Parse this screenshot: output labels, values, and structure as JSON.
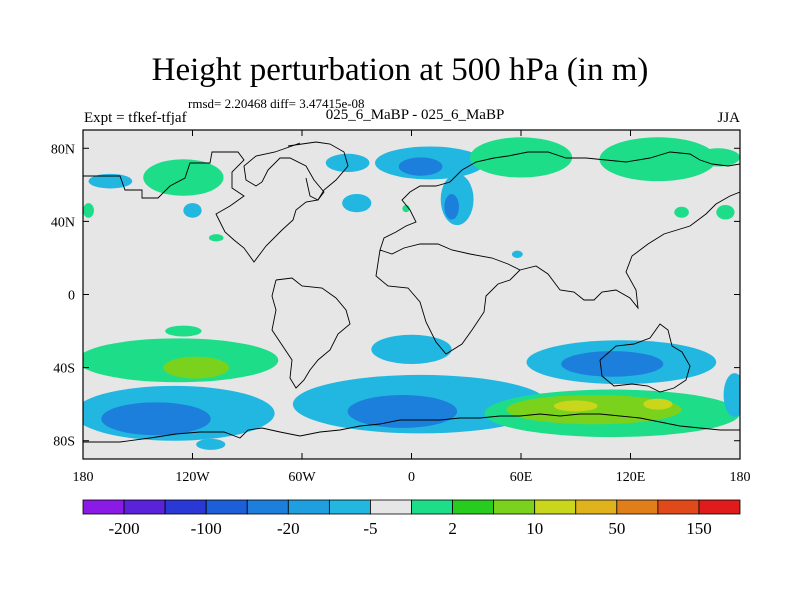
{
  "header": {
    "title": "Height perturbation at 500 hPa (in m)",
    "rmsd_line": "rmsd= 2.20468 diff= 3.47415e-08",
    "left_label": "Expt = tfkef-tfjaf",
    "center_label": "025_6_MaBP - 025_6_MaBP",
    "right_label": "JJA"
  },
  "map": {
    "projection": "cylindrical equidistant",
    "lon_range": [
      -180,
      180
    ],
    "lat_range": [
      -90,
      90
    ],
    "background_color": "#e6e6e6",
    "coastline_color": "#000000",
    "x_ticks": [
      {
        "lon": -180,
        "label": "180"
      },
      {
        "lon": -120,
        "label": "120W"
      },
      {
        "lon": -60,
        "label": "60W"
      },
      {
        "lon": 0,
        "label": "0"
      },
      {
        "lon": 60,
        "label": "60E"
      },
      {
        "lon": 120,
        "label": "120E"
      },
      {
        "lon": 180,
        "label": "180"
      }
    ],
    "y_ticks": [
      {
        "lat": 80,
        "label": "80N"
      },
      {
        "lat": 40,
        "label": "40N"
      },
      {
        "lat": 0,
        "label": "0"
      },
      {
        "lat": -40,
        "label": "40S"
      },
      {
        "lat": -80,
        "label": "80S"
      }
    ],
    "anomalies": [
      {
        "lon": 10,
        "lat": 72,
        "rx": 30,
        "ry": 9,
        "level": -5
      },
      {
        "lon": 5,
        "lat": 70,
        "rx": 12,
        "ry": 5,
        "level": -20
      },
      {
        "lon": 25,
        "lat": 52,
        "rx": 9,
        "ry": 14,
        "level": -5
      },
      {
        "lon": 22,
        "lat": 48,
        "rx": 4,
        "ry": 7,
        "level": -20
      },
      {
        "lon": -35,
        "lat": 72,
        "rx": 12,
        "ry": 5,
        "level": -5
      },
      {
        "lon": -30,
        "lat": 50,
        "rx": 8,
        "ry": 5,
        "level": -5
      },
      {
        "lon": -165,
        "lat": 62,
        "rx": 12,
        "ry": 4,
        "level": -5
      },
      {
        "lon": -120,
        "lat": 46,
        "rx": 5,
        "ry": 4,
        "level": -5
      },
      {
        "lon": 58,
        "lat": 22,
        "rx": 3,
        "ry": 2,
        "level": -5
      },
      {
        "lon": -125,
        "lat": 64,
        "rx": 22,
        "ry": 10,
        "level": 2
      },
      {
        "lon": 60,
        "lat": 75,
        "rx": 28,
        "ry": 11,
        "level": 2
      },
      {
        "lon": 135,
        "lat": 74,
        "rx": 32,
        "ry": 12,
        "level": 2
      },
      {
        "lon": 168,
        "lat": 75,
        "rx": 12,
        "ry": 5,
        "level": 2
      },
      {
        "lon": 172,
        "lat": 45,
        "rx": 5,
        "ry": 4,
        "level": 2
      },
      {
        "lon": 148,
        "lat": 45,
        "rx": 4,
        "ry": 3,
        "level": 2
      },
      {
        "lon": -177,
        "lat": 46,
        "rx": 3,
        "ry": 4,
        "level": 2
      },
      {
        "lon": -107,
        "lat": 31,
        "rx": 4,
        "ry": 2,
        "level": 2
      },
      {
        "lon": -3,
        "lat": 47,
        "rx": 2,
        "ry": 2,
        "level": 2
      },
      {
        "lon": -128,
        "lat": -36,
        "rx": 55,
        "ry": 12,
        "level": 2
      },
      {
        "lon": -118,
        "lat": -40,
        "rx": 18,
        "ry": 6,
        "level": 10
      },
      {
        "lon": -125,
        "lat": -20,
        "rx": 10,
        "ry": 3,
        "level": 2
      },
      {
        "lon": -130,
        "lat": -65,
        "rx": 55,
        "ry": 15,
        "level": -5
      },
      {
        "lon": -140,
        "lat": -68,
        "rx": 30,
        "ry": 9,
        "level": -20
      },
      {
        "lon": 5,
        "lat": -60,
        "rx": 70,
        "ry": 16,
        "level": -5
      },
      {
        "lon": -5,
        "lat": -64,
        "rx": 30,
        "ry": 9,
        "level": -20
      },
      {
        "lon": 0,
        "lat": -30,
        "rx": 22,
        "ry": 8,
        "level": -5
      },
      {
        "lon": 115,
        "lat": -37,
        "rx": 52,
        "ry": 12,
        "level": -5
      },
      {
        "lon": 110,
        "lat": -38,
        "rx": 28,
        "ry": 7,
        "level": -20
      },
      {
        "lon": 110,
        "lat": -65,
        "rx": 70,
        "ry": 13,
        "level": 2
      },
      {
        "lon": 100,
        "lat": -63,
        "rx": 48,
        "ry": 8,
        "level": 10
      },
      {
        "lon": 90,
        "lat": -61,
        "rx": 12,
        "ry": 3,
        "level": 50
      },
      {
        "lon": 135,
        "lat": -60,
        "rx": 8,
        "ry": 3,
        "level": 50
      },
      {
        "lon": 177,
        "lat": -55,
        "rx": 6,
        "ry": 12,
        "level": -5
      },
      {
        "lon": -110,
        "lat": -82,
        "rx": 8,
        "ry": 3,
        "level": -5
      }
    ]
  },
  "colorbar": {
    "colors": [
      "#8c1ae6",
      "#5a22d9",
      "#2a38d6",
      "#1c5fd9",
      "#1c7fdb",
      "#1f9fdf",
      "#22b7e0",
      "#e6e6e6",
      "#1edd89",
      "#27cc1e",
      "#7bd21c",
      "#c9d61b",
      "#e0b21b",
      "#e07e1b",
      "#e04a1b",
      "#e01b1b"
    ],
    "level_colors": {
      "-20": "#1c7fdb",
      "-5": "#22b7e0",
      "2": "#1edd89",
      "10": "#7bd21c",
      "50": "#c9d61b"
    },
    "labels": [
      "-200",
      "-100",
      "-20",
      "-5",
      "2",
      "10",
      "50",
      "150"
    ]
  }
}
